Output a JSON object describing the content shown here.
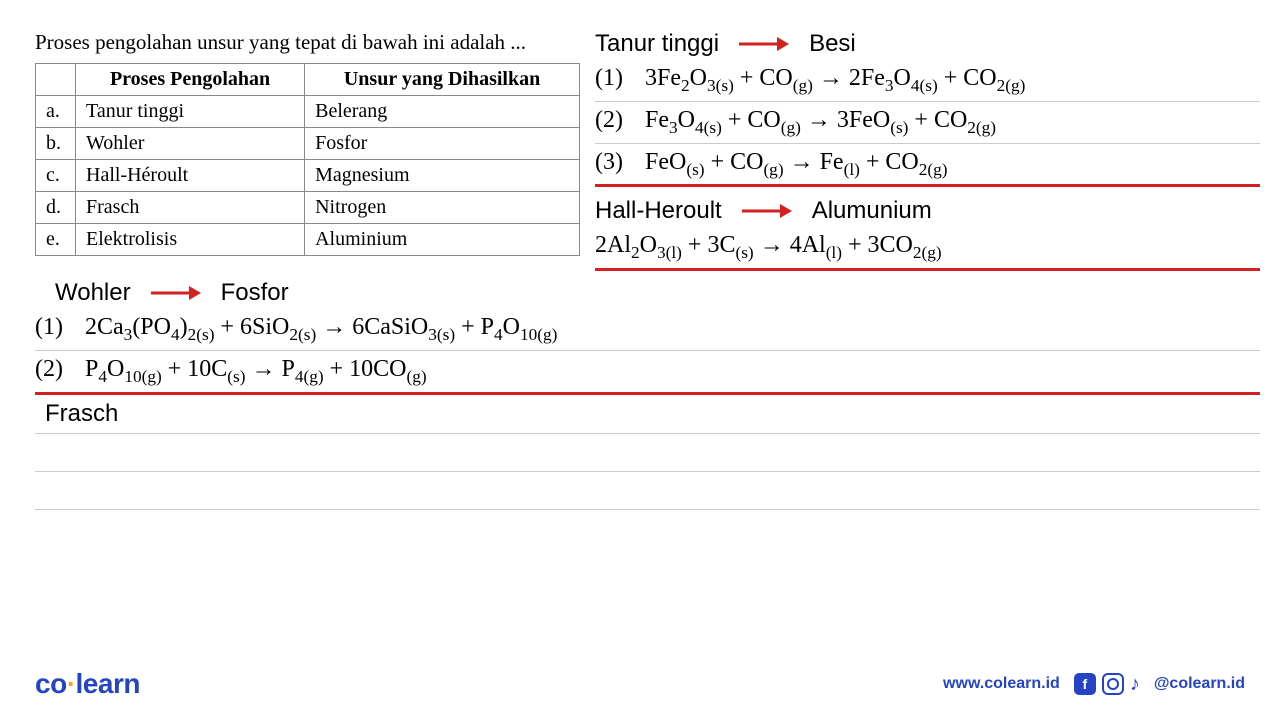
{
  "question": "Proses pengolahan unsur yang tepat di bawah ini adalah ...",
  "table": {
    "headers": [
      "",
      "Proses Pengolahan",
      "Unsur yang Dihasilkan"
    ],
    "rows": [
      [
        "a.",
        "Tanur tinggi",
        "Belerang"
      ],
      [
        "b.",
        "Wohler",
        "Fosfor"
      ],
      [
        "c.",
        "Hall-Héroult",
        "Magnesium"
      ],
      [
        "d.",
        "Frasch",
        "Nitrogen"
      ],
      [
        "e.",
        "Elektrolisis",
        "Aluminium"
      ]
    ]
  },
  "sections": {
    "tanur": {
      "title_left": "Tanur tinggi",
      "title_right": "Besi",
      "equations": [
        {
          "num": "(1)",
          "html": "3Fe<sub>2</sub>O<sub>3(s)</sub> + CO<sub>(g)</sub> → 2Fe<sub>3</sub>O<sub>4(s)</sub> + CO<sub>2(g)</sub>"
        },
        {
          "num": "(2)",
          "html": "Fe<sub>3</sub>O<sub>4(s)</sub> + CO<sub>(g)</sub> → 3FeO<sub>(s)</sub> + CO<sub>2(g)</sub>"
        },
        {
          "num": "(3)",
          "html": "FeO<sub>(s)</sub> + CO<sub>(g)</sub> → Fe<sub>(l)</sub> + CO<sub>2(g)</sub>"
        }
      ]
    },
    "hall": {
      "title_left": "Hall-Heroult",
      "title_right": "Alumunium",
      "equation": {
        "html": "2Al<sub>2</sub>O<sub>3(l)</sub> + 3C<sub>(s)</sub> → 4Al<sub>(l)</sub> + 3CO<sub>2(g)</sub>"
      }
    },
    "wohler": {
      "title_left": "Wohler",
      "title_right": "Fosfor",
      "equations": [
        {
          "num": "(1)",
          "html": "2Ca<sub>3</sub>(PO<sub>4</sub>)<sub>2(s)</sub> + 6SiO<sub>2(s)</sub> → 6CaSiO<sub>3(s)</sub> + P<sub>4</sub>O<sub>10(g)</sub>"
        },
        {
          "num": "(2)",
          "html": "P<sub>4</sub>O<sub>10(g)</sub> + 10C<sub>(s)</sub> → P<sub>4(g)</sub> + 10CO<sub>(g)</sub>"
        }
      ]
    },
    "frasch": {
      "title": "Frasch"
    }
  },
  "footer": {
    "logo_co": "co",
    "logo_learn": "learn",
    "url": "www.colearn.id",
    "handle": "@colearn.id"
  },
  "colors": {
    "red": "#d32020",
    "blue": "#2544c4",
    "rule": "#cccccc"
  }
}
